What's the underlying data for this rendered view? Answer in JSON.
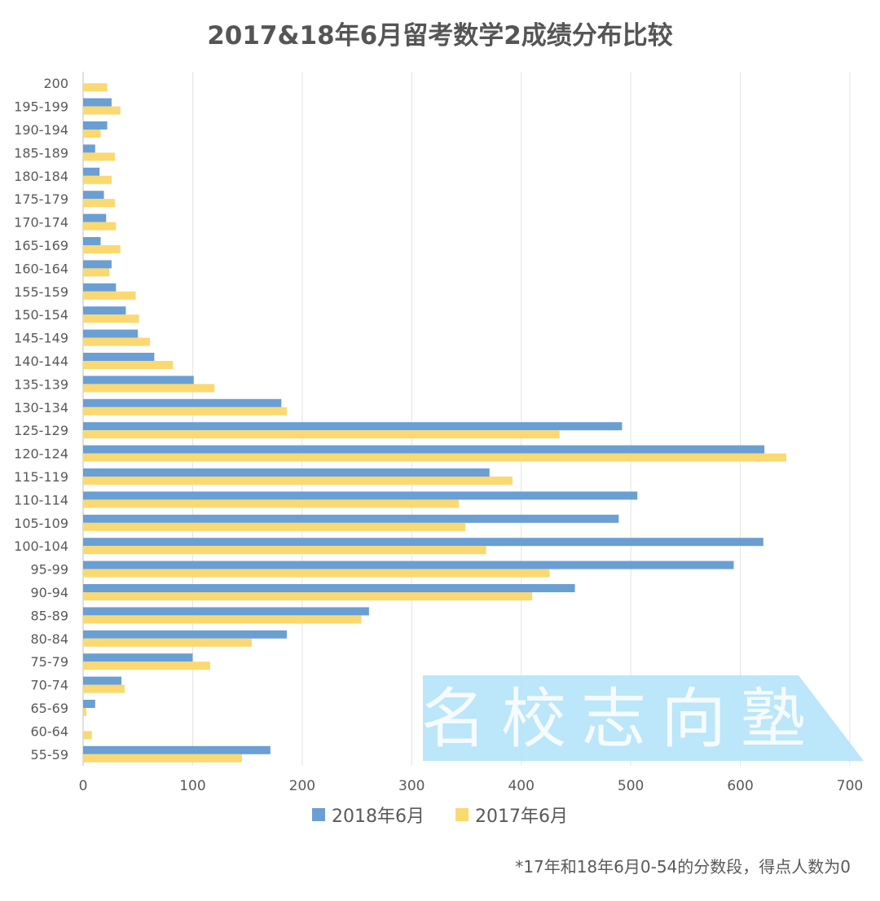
{
  "chart_data": {
    "type": "bar",
    "orientation": "horizontal",
    "title": "2017&18年6月留考数学2成绩分布比较",
    "categories": [
      "200",
      "195-199",
      "190-194",
      "185-189",
      "180-184",
      "175-179",
      "170-174",
      "165-169",
      "160-164",
      "155-159",
      "150-154",
      "145-149",
      "140-144",
      "135-139",
      "130-134",
      "125-129",
      "120-124",
      "115-119",
      "110-114",
      "105-109",
      "100-104",
      "95-99",
      "90-94",
      "85-89",
      "80-84",
      "75-79",
      "70-74",
      "65-69",
      "60-64",
      "55-59"
    ],
    "series": [
      {
        "name": "2018年6月",
        "color": "#6A9FD4",
        "values": [
          0,
          26,
          22,
          11,
          15,
          19,
          21,
          16,
          26,
          30,
          39,
          50,
          65,
          101,
          181,
          492,
          622,
          371,
          506,
          489,
          621,
          594,
          449,
          261,
          186,
          100,
          35,
          11,
          0,
          171
        ]
      },
      {
        "name": "2017年6月",
        "color": "#FBD970",
        "values": [
          22,
          34,
          16,
          29,
          26,
          29,
          30,
          34,
          24,
          48,
          51,
          61,
          82,
          120,
          186,
          435,
          642,
          392,
          343,
          349,
          368,
          426,
          410,
          254,
          154,
          116,
          38,
          3,
          8,
          145
        ]
      }
    ],
    "x_ticks": [
      0,
      100,
      200,
      300,
      400,
      500,
      600,
      700
    ],
    "xlim": [
      0,
      700
    ],
    "grid": "vertical",
    "legend_position": "bottom",
    "watermark": "名校志向塾",
    "footnote": "*17年和18年6月0-54的分数段，得点人数为0"
  }
}
